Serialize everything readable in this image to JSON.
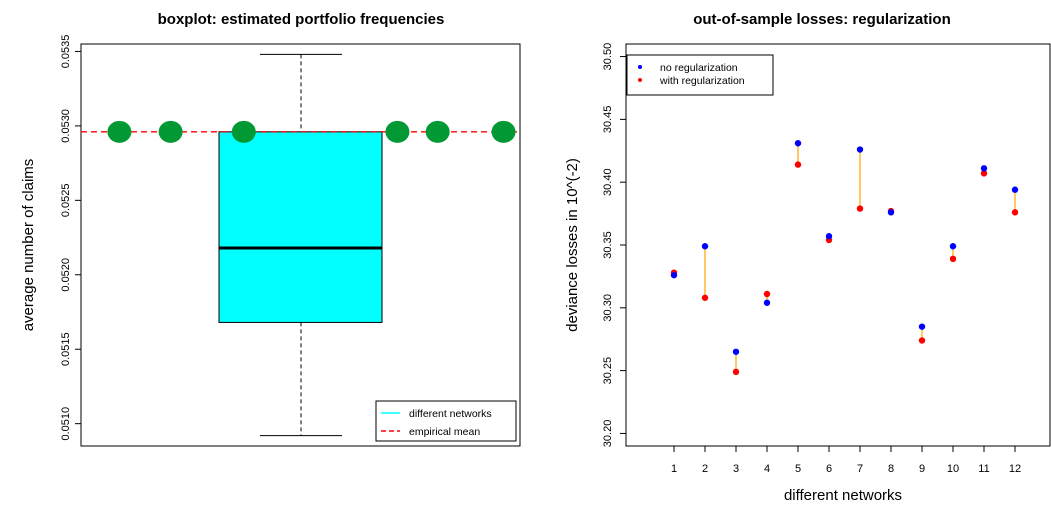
{
  "chart_data": [
    {
      "type": "boxplot",
      "title": "boxplot: estimated portfolio frequencies",
      "ylabel": "average number of claims",
      "ylim": [
        0.05085,
        0.05355
      ],
      "yticks": [
        "0.0510",
        "0.0515",
        "0.0520",
        "0.0525",
        "0.0530",
        "0.0535"
      ],
      "box": {
        "min": 0.05092,
        "q1": 0.05168,
        "median": 0.05218,
        "q3": 0.05296,
        "max": 0.05348,
        "color": "#00ffff"
      },
      "empirical_mean": {
        "value": 0.05296,
        "color": "#ff0000"
      },
      "marker_color": "#009933",
      "markers_x": [
        0.105,
        0.245,
        0.445,
        0.865,
        0.975,
        1.155
      ],
      "legend": [
        {
          "label": "different networks",
          "color": "#00ffff",
          "style": "solid"
        },
        {
          "label": "empirical mean",
          "color": "#ff0000",
          "style": "dashed"
        }
      ]
    },
    {
      "type": "scatter",
      "title": "out-of-sample losses: regularization",
      "xlabel": "different networks",
      "ylabel": "deviance losses in 10^(-2)",
      "ylim": [
        30.19,
        30.51
      ],
      "yticks": [
        "30.20",
        "30.25",
        "30.30",
        "30.35",
        "30.40",
        "30.45",
        "30.50"
      ],
      "xticks": [
        "1",
        "2",
        "3",
        "4",
        "5",
        "6",
        "7",
        "8",
        "9",
        "10",
        "11",
        "12"
      ],
      "x": [
        1,
        2,
        3,
        4,
        5,
        6,
        7,
        8,
        9,
        10,
        11,
        12
      ],
      "series": [
        {
          "name": "no regularization",
          "color": "#0000ff",
          "values": [
            30.326,
            30.349,
            30.265,
            30.304,
            30.431,
            30.357,
            30.426,
            30.376,
            30.285,
            30.349,
            30.411,
            30.394
          ]
        },
        {
          "name": "with regularization",
          "color": "#ff0000",
          "values": [
            30.328,
            30.308,
            30.249,
            30.311,
            30.414,
            30.354,
            30.379,
            30.377,
            30.274,
            30.339,
            30.407,
            30.376
          ]
        }
      ],
      "connector_color": "#ffa500"
    }
  ]
}
